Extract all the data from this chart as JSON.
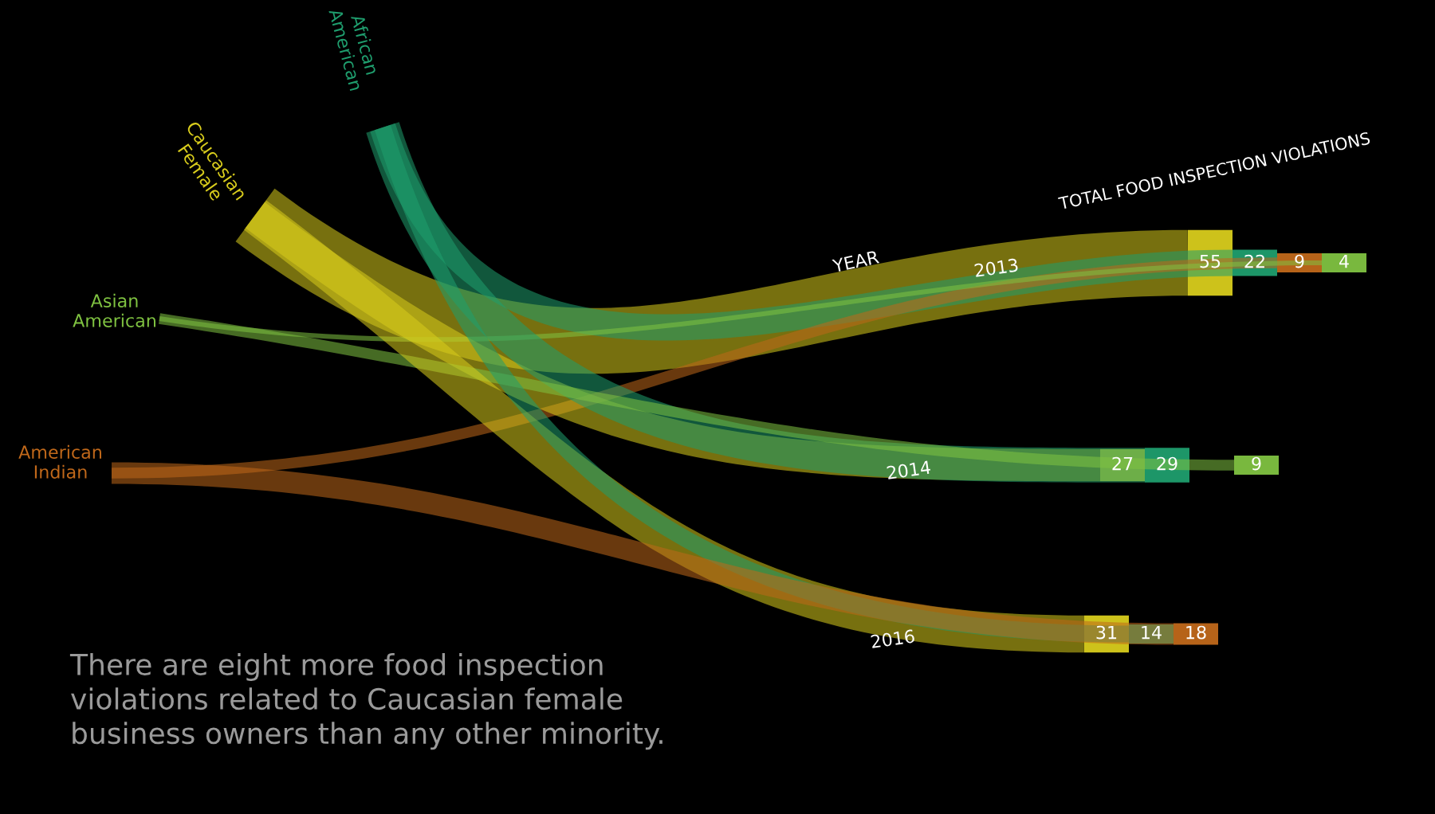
{
  "chart_data": {
    "type": "other",
    "xlabel": "YEAR",
    "ylabel": "TOTAL FOOD INSPECTION VIOLATIONS",
    "categories": [
      "2013",
      "2014",
      "2016"
    ],
    "series": [
      {
        "name": "Caucasian Female",
        "color": "#d8cc1c",
        "values": [
          55,
          27,
          31
        ]
      },
      {
        "name": "African American",
        "color": "#1f9e6e",
        "values": [
          22,
          29,
          14
        ]
      },
      {
        "name": "American Indian",
        "color": "#c0681a",
        "values": [
          9,
          null,
          18
        ]
      },
      {
        "name": "Asian American",
        "color": "#7fc241",
        "values": [
          4,
          9,
          null
        ]
      }
    ],
    "data_labels": true,
    "annotations": [
      "There are eight more food inspection\nviolations related to Caucasian female\nbusiness owners than any other minority."
    ]
  }
}
